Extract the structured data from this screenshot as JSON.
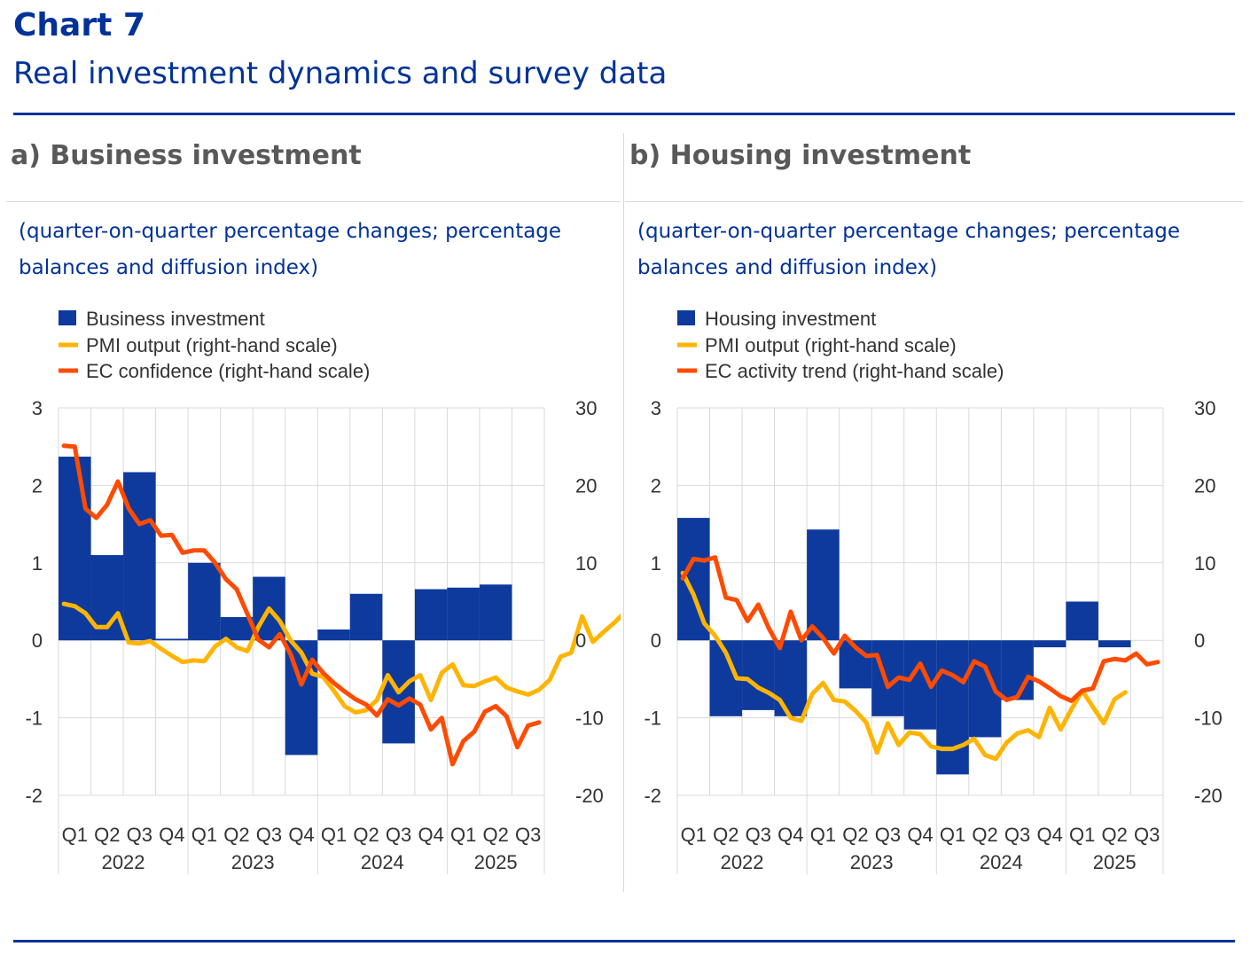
{
  "header": {
    "chart_label": "Chart 7",
    "title": "Real investment dynamics and survey data"
  },
  "colors": {
    "brand_blue": "#003299",
    "bar_blue": "#0e3a9d",
    "pmi_yellow": "#ffb400",
    "ec_orange": "#ff4b00",
    "grid": "#d9d9d9"
  },
  "chart_data": [
    {
      "panel_title": "a) Business investment",
      "subtitle": "(quarter-on-quarter percentage changes; percentage balances and diffusion index)",
      "type": "bar+line",
      "categories": [
        "Q1",
        "Q2",
        "Q3",
        "Q4",
        "Q1",
        "Q2",
        "Q3",
        "Q4",
        "Q1",
        "Q2",
        "Q3",
        "Q4",
        "Q1",
        "Q2",
        "Q3"
      ],
      "years": [
        {
          "label": "2022",
          "span": [
            0,
            4
          ]
        },
        {
          "label": "2023",
          "span": [
            4,
            8
          ]
        },
        {
          "label": "2024",
          "span": [
            8,
            12
          ]
        },
        {
          "label": "2025",
          "span": [
            12,
            15
          ]
        }
      ],
      "y_left": {
        "min": -2,
        "max": 3,
        "ticks": [
          3,
          2,
          1,
          0,
          -1,
          -2
        ]
      },
      "y_right": {
        "min": -20,
        "max": 30,
        "ticks": [
          30,
          20,
          10,
          0,
          -10,
          -20
        ]
      },
      "legend": [
        "Business investment",
        "PMI output (right-hand scale)",
        "EC confidence (right-hand scale)"
      ],
      "bars": {
        "name": "Business investment",
        "values": [
          2.37,
          1.1,
          2.17,
          0.02,
          1.0,
          0.3,
          0.82,
          -1.48,
          0.14,
          0.6,
          -1.33,
          0.66,
          0.68,
          0.72,
          null
        ]
      },
      "lines": [
        {
          "name": "PMI output (right-hand scale)",
          "color_key": "pmi_yellow",
          "values": [
            4.7,
            4.4,
            3.5,
            1.7,
            1.7,
            3.5,
            -0.3,
            -0.4,
            -0.1,
            -1.1,
            -2.0,
            -2.8,
            -2.6,
            -2.7,
            -0.8,
            0.2,
            -0.9,
            -1.4,
            1.7,
            4.1,
            2.5,
            0.0,
            -1.6,
            -4.3,
            -4.7,
            -6.5,
            -8.5,
            -9.3,
            -9.0,
            -7.7,
            -4.5,
            -6.7,
            -5.3,
            -4.5,
            -7.7,
            -4.2,
            -3.1,
            -5.8,
            -5.9,
            -5.3,
            -4.8,
            -6.1,
            -6.6,
            -7.0,
            -6.4,
            -5.1,
            -2.1,
            -1.6,
            3.1,
            -0.2,
            1.1,
            2.3,
            3.7
          ]
        },
        {
          "name": "EC confidence (right-hand scale)",
          "color_key": "ec_orange",
          "values": [
            25.1,
            25.0,
            17.0,
            15.8,
            17.5,
            20.5,
            17.0,
            15.0,
            15.5,
            13.5,
            13.6,
            11.3,
            11.6,
            11.6,
            10.0,
            7.9,
            6.6,
            3.4,
            0.1,
            -0.9,
            0.8,
            -1.8,
            -5.7,
            -2.5,
            -4.2,
            -5.5,
            -6.6,
            -7.6,
            -8.3,
            -9.7,
            -7.6,
            -8.4,
            -7.5,
            -8.3,
            -11.5,
            -10.0,
            -16.0,
            -13.0,
            -11.8,
            -9.2,
            -8.5,
            -9.8,
            -13.8,
            -11.0,
            -10.6
          ]
        }
      ]
    },
    {
      "panel_title": "b) Housing investment",
      "subtitle": "(quarter-on-quarter percentage changes; percentage balances and diffusion index)",
      "type": "bar+line",
      "categories": [
        "Q1",
        "Q2",
        "Q3",
        "Q4",
        "Q1",
        "Q2",
        "Q3",
        "Q4",
        "Q1",
        "Q2",
        "Q3",
        "Q4",
        "Q1",
        "Q2",
        "Q3"
      ],
      "years": [
        {
          "label": "2022",
          "span": [
            0,
            4
          ]
        },
        {
          "label": "2023",
          "span": [
            4,
            8
          ]
        },
        {
          "label": "2024",
          "span": [
            8,
            12
          ]
        },
        {
          "label": "2025",
          "span": [
            12,
            15
          ]
        }
      ],
      "y_left": {
        "min": -2,
        "max": 3,
        "ticks": [
          3,
          2,
          1,
          0,
          -1,
          -2
        ]
      },
      "y_right": {
        "min": -20,
        "max": 30,
        "ticks": [
          30,
          20,
          10,
          0,
          -10,
          -20
        ]
      },
      "legend": [
        "Housing investment",
        "PMI output (right-hand scale)",
        "EC activity trend (right-hand scale)"
      ],
      "bars": {
        "name": "Housing investment",
        "values": [
          1.58,
          -0.98,
          -0.9,
          -0.98,
          1.43,
          -0.62,
          -0.98,
          -1.15,
          -1.73,
          -1.25,
          -0.77,
          -0.09,
          0.5,
          -0.09,
          null
        ]
      },
      "lines": [
        {
          "name": "PMI output (right-hand scale)",
          "color_key": "pmi_yellow",
          "values": [
            8.7,
            5.9,
            2.2,
            0.6,
            -1.6,
            -4.9,
            -5.0,
            -6.1,
            -6.8,
            -7.7,
            -10.0,
            -10.4,
            -6.9,
            -5.5,
            -7.7,
            -7.9,
            -9.1,
            -10.6,
            -14.5,
            -10.7,
            -13.5,
            -11.9,
            -12.1,
            -13.7,
            -14.0,
            -14.0,
            -13.5,
            -12.7,
            -14.8,
            -15.3,
            -13.2,
            -12.0,
            -11.6,
            -12.5,
            -8.7,
            -11.5,
            -8.9,
            -6.5,
            -8.6,
            -10.7,
            -7.6,
            -6.7
          ]
        },
        {
          "name": "EC activity trend (right-hand scale)",
          "color_key": "ec_orange",
          "values": [
            8.0,
            10.5,
            10.3,
            10.7,
            5.5,
            5.2,
            2.5,
            4.6,
            1.5,
            -1.0,
            3.7,
            0.0,
            1.8,
            0.3,
            -1.7,
            0.6,
            -0.9,
            -2.0,
            -1.9,
            -6.0,
            -4.8,
            -5.1,
            -3.0,
            -6.0,
            -3.9,
            -4.5,
            -5.4,
            -2.7,
            -3.4,
            -6.6,
            -7.7,
            -7.3,
            -4.7,
            -5.3,
            -6.2,
            -7.2,
            -7.8,
            -6.5,
            -6.2,
            -2.7,
            -2.4,
            -2.6,
            -1.7,
            -3.1,
            -2.8
          ]
        }
      ]
    }
  ]
}
